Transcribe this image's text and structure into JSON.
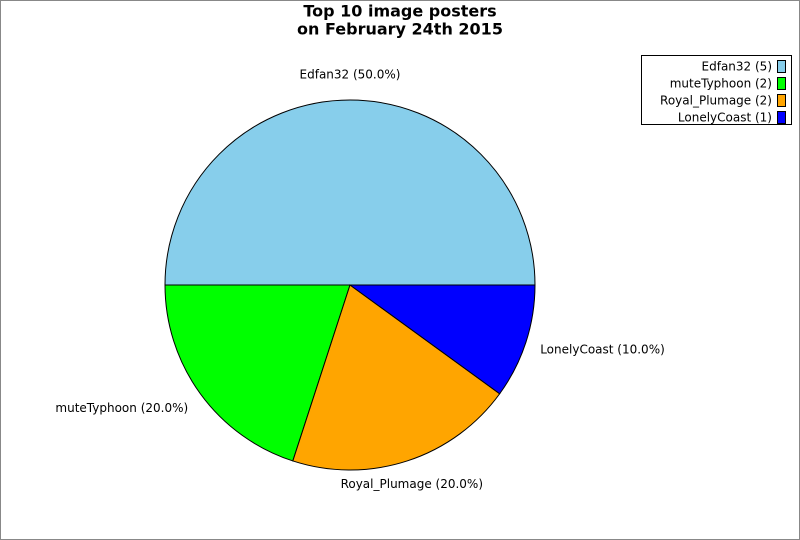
{
  "chart_data": {
    "type": "pie",
    "title": [
      "Top 10 image posters",
      "on February 24th 2015"
    ],
    "categories": [
      "Edfan32 (5)",
      "muteTyphoon (2)",
      "Royal_Plumage (2)",
      "LonelyCoast (1)"
    ],
    "values": [
      50,
      20,
      20,
      10
    ],
    "value_labels": [
      "Edfan32 (50.0%)",
      "muteTyphoon (20.0%)",
      "Royal_Plumage (20.0%)",
      "LonelyCoast (10.0%)"
    ],
    "colors": [
      "#87ceeb",
      "#00ff00",
      "#ffa500",
      "#0000ff"
    ],
    "legend": "upper right"
  }
}
